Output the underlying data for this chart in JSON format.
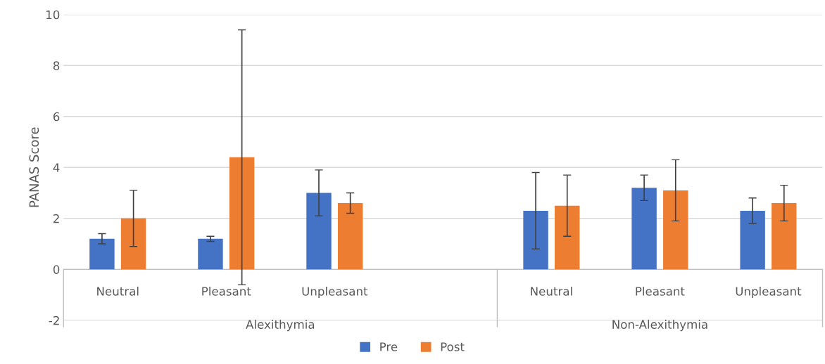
{
  "chart_data": {
    "type": "bar",
    "ylabel": "PANAS Score",
    "categories": [
      "Neutral",
      "Pleasant",
      "Unpleasant",
      null,
      "Neutral",
      "Pleasant",
      "Unpleasant"
    ],
    "series": [
      {
        "name": "Pre",
        "color": "#4472c4",
        "values": [
          1.2,
          1.2,
          3.0,
          null,
          2.3,
          3.2,
          2.3
        ],
        "errors": [
          [
            1.0,
            1.4
          ],
          [
            1.1,
            1.3
          ],
          [
            2.1,
            3.9
          ],
          null,
          [
            0.8,
            3.8
          ],
          [
            2.7,
            3.7
          ],
          [
            1.8,
            2.8
          ]
        ]
      },
      {
        "name": "Post",
        "color": "#ed7d31",
        "values": [
          2.0,
          4.4,
          2.6,
          null,
          2.5,
          3.1,
          2.6
        ],
        "errors": [
          [
            0.9,
            3.1
          ],
          [
            -0.6,
            9.4
          ],
          [
            2.2,
            3.0
          ],
          null,
          [
            1.3,
            3.7
          ],
          [
            1.9,
            4.3
          ],
          [
            1.9,
            3.3
          ]
        ]
      }
    ],
    "annotations": [
      "Alexithymia",
      "Non-Alexithymia"
    ],
    "ylim": [
      -2,
      10
    ],
    "yticks": [
      -2,
      0,
      2,
      4,
      6,
      8,
      10
    ],
    "grid": "y",
    "legend": "bottom"
  }
}
